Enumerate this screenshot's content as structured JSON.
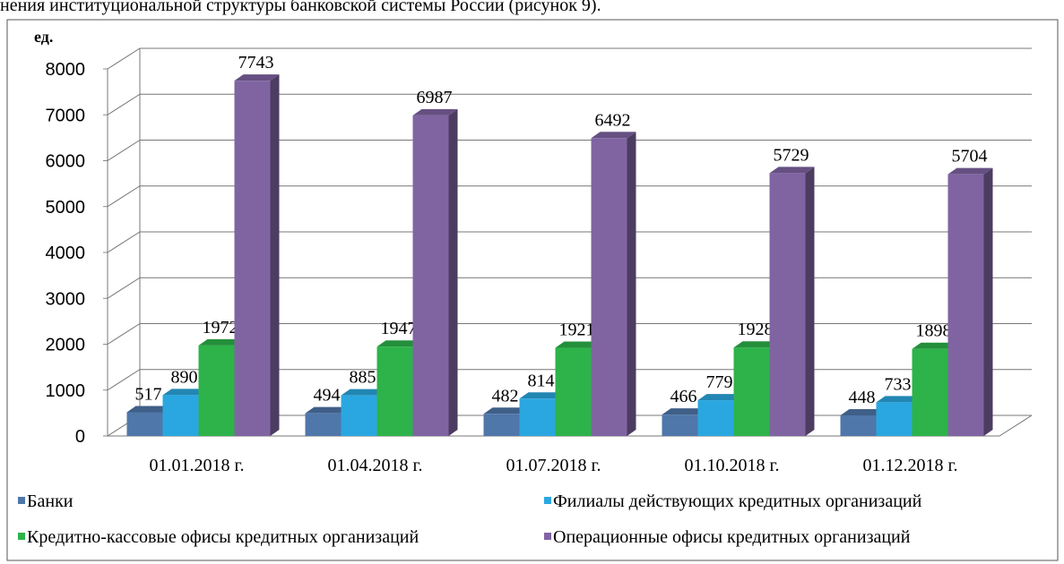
{
  "text_above": "нения институциональной структуры банковской системы России (рисунок 9).",
  "chart_data": {
    "type": "bar3d",
    "y_unit": "ед.",
    "categories": [
      "01.01.2018  г.",
      "01.04.2018  г.",
      "01.07.2018  г.",
      "01.10.2018  г.",
      "01.12.2018  г."
    ],
    "series": [
      {
        "name": "Банки",
        "color": "#4f77aa",
        "values": [
          517,
          494,
          482,
          466,
          448
        ]
      },
      {
        "name": "Филиалы действующих кредитных организаций",
        "color": "#2aa7e0",
        "values": [
          890,
          885,
          814,
          779,
          733
        ]
      },
      {
        "name": "Кредитно-кассовые офисы кредитных организаций",
        "color": "#2db34a",
        "values": [
          1972,
          1947,
          1921,
          1928,
          1898
        ]
      },
      {
        "name": "Операционные офисы кредитных организаций",
        "color": "#8064a2",
        "values": [
          7743,
          6987,
          6492,
          5729,
          5704
        ]
      }
    ],
    "ylim": [
      0,
      8000
    ],
    "yticks": [
      0,
      1000,
      2000,
      3000,
      4000,
      5000,
      6000,
      7000,
      8000
    ],
    "grid": true
  }
}
